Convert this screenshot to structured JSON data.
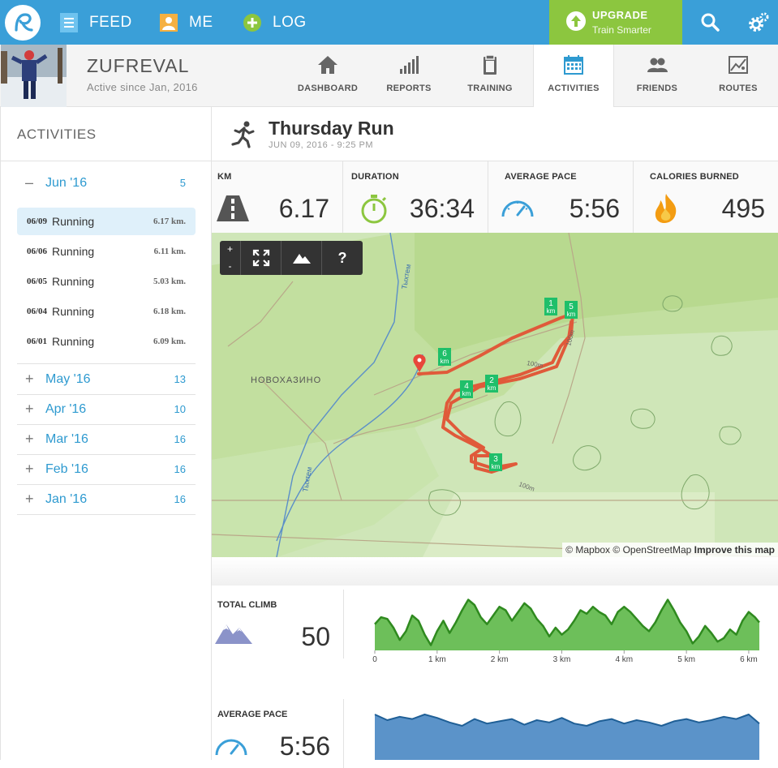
{
  "nav": {
    "feed": "FEED",
    "me": "ME",
    "log": "LOG",
    "upgrade_title": "UPGRADE",
    "upgrade_sub": "Train Smarter"
  },
  "profile": {
    "username": "ZUFREVAL",
    "since": "Active since Jan, 2016",
    "tabs": [
      {
        "label": "DASHBOARD",
        "icon": "home-icon"
      },
      {
        "label": "REPORTS",
        "icon": "bar-chart-icon"
      },
      {
        "label": "TRAINING",
        "icon": "clipboard-icon"
      },
      {
        "label": "ACTIVITIES",
        "icon": "calendar-icon",
        "active": true
      },
      {
        "label": "FRIENDS",
        "icon": "people-icon"
      },
      {
        "label": "ROUTES",
        "icon": "map-icon"
      }
    ]
  },
  "sidebar": {
    "title": "ACTIVITIES",
    "months": [
      {
        "sign": "–",
        "label": "Jun '16",
        "count": "5",
        "expanded": true
      },
      {
        "sign": "+",
        "label": "May '16",
        "count": "13"
      },
      {
        "sign": "+",
        "label": "Apr '16",
        "count": "10"
      },
      {
        "sign": "+",
        "label": "Mar '16",
        "count": "16"
      },
      {
        "sign": "+",
        "label": "Feb '16",
        "count": "16"
      },
      {
        "sign": "+",
        "label": "Jan '16",
        "count": "16"
      }
    ],
    "activities": [
      {
        "date": "06/09",
        "type": "Running",
        "dist": "6.17 km.",
        "selected": true
      },
      {
        "date": "06/06",
        "type": "Running",
        "dist": "6.11 km."
      },
      {
        "date": "06/05",
        "type": "Running",
        "dist": "5.03 km."
      },
      {
        "date": "06/04",
        "type": "Running",
        "dist": "6.18 km."
      },
      {
        "date": "06/01",
        "type": "Running",
        "dist": "6.09 km."
      }
    ]
  },
  "run": {
    "title": "Thursday Run",
    "subtitle": "JUN 09, 2016  -  9:25 PM"
  },
  "stats": [
    {
      "label": "KM",
      "value": "6.17",
      "icon": "road-icon"
    },
    {
      "label": "DURATION",
      "value": "36:34",
      "icon": "stopwatch-icon"
    },
    {
      "label": "AVERAGE PACE",
      "value": "5:56",
      "icon": "speedometer-icon"
    },
    {
      "label": "CALORIES BURNED",
      "value": "495",
      "icon": "flame-icon"
    }
  ],
  "map": {
    "controls": {
      "zoom_in": "+",
      "zoom_out": "-",
      "help": "?"
    },
    "place_label": "НОВОХАЗИНО",
    "river_label": "Тыхтем",
    "contour_label": "100m",
    "km_markers": [
      "1",
      "2",
      "3",
      "4",
      "5",
      "6"
    ],
    "km_unit": "km",
    "attribution": {
      "mapbox": "© Mapbox",
      "osm": "© OpenStreetMap",
      "improve": "Improve this map"
    }
  },
  "climb": {
    "label": "TOTAL CLIMB",
    "value": "50",
    "icon": "mountain-icon"
  },
  "pace": {
    "label": "AVERAGE PACE",
    "value": "5:56",
    "icon": "speedometer-icon"
  },
  "colors": {
    "topbar": "#3a9fd8",
    "upgrade": "#8cc63f",
    "accent": "#2e9ad0",
    "route": "#e05a3a",
    "marker": "#1fbf6a",
    "elevation_fill": "#6dbf5a",
    "elevation_line": "#2f8a1f",
    "pace_fill": "#5b93c9",
    "pace_line": "#1f5f96"
  },
  "chart_data": [
    {
      "type": "area",
      "title": "",
      "xlabel": "",
      "ylabel": "",
      "x_ticks": [
        "0",
        "1 km",
        "2 km",
        "3 km",
        "4 km",
        "5 km",
        "6 km"
      ],
      "x": [
        0,
        0.1,
        0.2,
        0.3,
        0.4,
        0.5,
        0.6,
        0.7,
        0.8,
        0.9,
        1.0,
        1.1,
        1.2,
        1.3,
        1.4,
        1.5,
        1.6,
        1.7,
        1.8,
        1.9,
        2.0,
        2.1,
        2.2,
        2.3,
        2.4,
        2.5,
        2.6,
        2.7,
        2.8,
        2.9,
        3.0,
        3.1,
        3.2,
        3.3,
        3.4,
        3.5,
        3.6,
        3.7,
        3.8,
        3.9,
        4.0,
        4.1,
        4.2,
        4.3,
        4.4,
        4.5,
        4.6,
        4.7,
        4.8,
        4.9,
        5.0,
        5.1,
        5.2,
        5.3,
        5.4,
        5.5,
        5.6,
        5.7,
        5.8,
        5.9,
        6.0,
        6.1,
        6.17
      ],
      "values": [
        30,
        38,
        36,
        26,
        12,
        22,
        40,
        34,
        18,
        6,
        22,
        34,
        20,
        32,
        46,
        58,
        52,
        38,
        30,
        40,
        50,
        46,
        34,
        44,
        54,
        48,
        36,
        28,
        16,
        26,
        18,
        24,
        34,
        46,
        42,
        50,
        44,
        40,
        30,
        44,
        50,
        44,
        36,
        28,
        22,
        32,
        46,
        58,
        46,
        32,
        22,
        8,
        16,
        28,
        20,
        10,
        14,
        24,
        18,
        34,
        44,
        38,
        32
      ],
      "ylim": [
        0,
        65
      ]
    },
    {
      "type": "area",
      "title": "",
      "xlabel": "",
      "ylabel": "",
      "x": [
        0,
        0.2,
        0.4,
        0.6,
        0.8,
        1.0,
        1.2,
        1.4,
        1.6,
        1.8,
        2.0,
        2.2,
        2.4,
        2.6,
        2.8,
        3.0,
        3.2,
        3.4,
        3.6,
        3.8,
        4.0,
        4.2,
        4.4,
        4.6,
        4.8,
        5.0,
        5.2,
        5.4,
        5.6,
        5.8,
        6.0,
        6.17
      ],
      "values": [
        5.9,
        5.85,
        5.88,
        5.86,
        5.9,
        5.87,
        5.83,
        5.8,
        5.86,
        5.82,
        5.84,
        5.86,
        5.81,
        5.85,
        5.83,
        5.87,
        5.82,
        5.8,
        5.84,
        5.86,
        5.82,
        5.85,
        5.83,
        5.8,
        5.84,
        5.86,
        5.83,
        5.85,
        5.88,
        5.86,
        5.9,
        5.82
      ],
      "ylim": [
        5.5,
        6.0
      ]
    }
  ]
}
